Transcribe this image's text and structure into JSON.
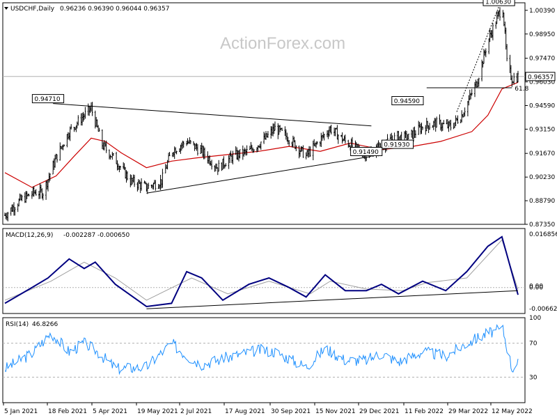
{
  "symbol_header": {
    "symbol": "USDCHF,Daily",
    "ohlc": "0.96236 0.96390 0.96044 0.96357"
  },
  "watermark": "ActionForex.com",
  "colors": {
    "candles": "#000000",
    "sma": "#cc0000",
    "macd": "#000080",
    "signal": "#a0a0a0",
    "rsi": "#1e90ff",
    "trend": "#000000",
    "level_line": "#b0b0b0"
  },
  "chart_data": [
    {
      "type": "candlestick",
      "title": "USDCHF,Daily",
      "x_tick_labels": [
        "5 Jan 2021",
        "18 Feb 2021",
        "5 Apr 2021",
        "19 May 2021",
        "2 Jul 2021",
        "17 Aug 2021",
        "30 Sep 2021",
        "15 Nov 2021",
        "29 Dec 2021",
        "11 Feb 2022",
        "29 Mar 2022",
        "12 May 2022"
      ],
      "y_ticks": [
        "1.00390",
        "0.98950",
        "0.97470",
        "0.96030",
        "0.94590",
        "0.93150",
        "0.91670",
        "0.90230",
        "0.88790",
        "0.87350"
      ],
      "ylim": [
        0.8735,
        1.0085
      ],
      "current_price": "0.96357",
      "annotations": [
        {
          "text": "1.00630",
          "date": "2022-05-12",
          "price": 1.0063
        },
        {
          "text": "0.94710",
          "date": "2021-02-17",
          "price": 0.9471
        },
        {
          "text": "0.94590",
          "date": "2022-02-10",
          "price": 0.9459
        },
        {
          "text": "0.91930",
          "date": "2022-01-31",
          "price": 0.9193
        },
        {
          "text": "0.91490",
          "date": "2021-12-31",
          "price": 0.9149
        },
        {
          "text": "61.8",
          "date": "2022-05-25",
          "price": 0.9567
        }
      ],
      "trendlines": [
        {
          "from": [
            "2021-02-22",
            0.9471
          ],
          "to": [
            "2022-01-05",
            0.9335
          ]
        },
        {
          "from": [
            "2021-05-26",
            0.8925
          ],
          "to": [
            "2022-01-05",
            0.9149
          ]
        },
        {
          "from": [
            "2022-03-31",
            0.942
          ],
          "to": [
            "2022-05-12",
            1.0063
          ]
        }
      ],
      "fib_line": {
        "from": "2022-03-01",
        "to": "2022-05-25",
        "price": 0.9567
      },
      "series_price_keypoints": [
        [
          "2021-01-05",
          0.879
        ],
        [
          "2021-01-20",
          0.888
        ],
        [
          "2021-02-03",
          0.893
        ],
        [
          "2021-02-12",
          0.893
        ],
        [
          "2021-02-25",
          0.914
        ],
        [
          "2021-03-10",
          0.93
        ],
        [
          "2021-03-25",
          0.94
        ],
        [
          "2021-04-01",
          0.944
        ],
        [
          "2021-04-12",
          0.922
        ],
        [
          "2021-04-26",
          0.912
        ],
        [
          "2021-05-10",
          0.9
        ],
        [
          "2021-05-26",
          0.896
        ],
        [
          "2021-06-10",
          0.9
        ],
        [
          "2021-06-20",
          0.918
        ],
        [
          "2021-07-05",
          0.924
        ],
        [
          "2021-07-20",
          0.918
        ],
        [
          "2021-08-05",
          0.908
        ],
        [
          "2021-08-20",
          0.915
        ],
        [
          "2021-09-05",
          0.918
        ],
        [
          "2021-09-20",
          0.925
        ],
        [
          "2021-10-01",
          0.932
        ],
        [
          "2021-10-15",
          0.926
        ],
        [
          "2021-11-01",
          0.915
        ],
        [
          "2021-11-15",
          0.925
        ],
        [
          "2021-11-25",
          0.932
        ],
        [
          "2021-12-10",
          0.924
        ],
        [
          "2021-12-31",
          0.916
        ],
        [
          "2022-01-12",
          0.92
        ],
        [
          "2022-01-31",
          0.927
        ],
        [
          "2022-02-10",
          0.926
        ],
        [
          "2022-02-25",
          0.933
        ],
        [
          "2022-03-10",
          0.935
        ],
        [
          "2022-03-25",
          0.933
        ],
        [
          "2022-04-05",
          0.94
        ],
        [
          "2022-04-20",
          0.96
        ],
        [
          "2022-05-01",
          0.985
        ],
        [
          "2022-05-12",
          1.002
        ],
        [
          "2022-05-16",
          1.005
        ],
        [
          "2022-05-20",
          0.972
        ],
        [
          "2022-05-25",
          0.962
        ],
        [
          "2022-05-31",
          0.9636
        ]
      ],
      "sma": [
        [
          "2021-01-05",
          0.905
        ],
        [
          "2021-02-01",
          0.896
        ],
        [
          "2021-02-25",
          0.903
        ],
        [
          "2021-03-15",
          0.915
        ],
        [
          "2021-04-01",
          0.926
        ],
        [
          "2021-04-15",
          0.924
        ],
        [
          "2021-05-01",
          0.917
        ],
        [
          "2021-05-26",
          0.908
        ],
        [
          "2021-06-20",
          0.912
        ],
        [
          "2021-07-15",
          0.914
        ],
        [
          "2021-08-15",
          0.916
        ],
        [
          "2021-09-15",
          0.918
        ],
        [
          "2021-10-15",
          0.921
        ],
        [
          "2021-11-15",
          0.918
        ],
        [
          "2021-12-15",
          0.923
        ],
        [
          "2022-01-15",
          0.919
        ],
        [
          "2022-02-15",
          0.921
        ],
        [
          "2022-03-15",
          0.924
        ],
        [
          "2022-04-15",
          0.93
        ],
        [
          "2022-05-01",
          0.94
        ],
        [
          "2022-05-15",
          0.956
        ],
        [
          "2022-05-31",
          0.96
        ]
      ]
    },
    {
      "type": "line",
      "title": "MACD(12,26,9)",
      "header_values": "-0.002287 -0.000650",
      "y_ticks": [
        "0.016856",
        "0.00",
        "0.00",
        "-0.006629"
      ],
      "ylim": [
        -0.0082,
        0.0186
      ],
      "series": [
        {
          "name": "MACD",
          "values": [
            [
              "2021-01-05",
              -0.005
            ],
            [
              "2021-02-01",
              0.0
            ],
            [
              "2021-02-17",
              0.003
            ],
            [
              "2021-03-10",
              0.009
            ],
            [
              "2021-03-25",
              0.006
            ],
            [
              "2021-04-05",
              0.008
            ],
            [
              "2021-04-25",
              0.001
            ],
            [
              "2021-05-26",
              -0.006
            ],
            [
              "2021-06-20",
              -0.005
            ],
            [
              "2021-07-05",
              0.005
            ],
            [
              "2021-07-20",
              0.003
            ],
            [
              "2021-08-10",
              -0.004
            ],
            [
              "2021-09-05",
              0.001
            ],
            [
              "2021-09-25",
              0.003
            ],
            [
              "2021-10-15",
              0.0
            ],
            [
              "2021-11-01",
              -0.003
            ],
            [
              "2021-11-20",
              0.004
            ],
            [
              "2021-12-10",
              -0.001
            ],
            [
              "2021-12-31",
              -0.001
            ],
            [
              "2022-01-15",
              0.001
            ],
            [
              "2022-02-01",
              -0.002
            ],
            [
              "2022-02-25",
              0.002
            ],
            [
              "2022-03-20",
              -0.001
            ],
            [
              "2022-04-10",
              0.005
            ],
            [
              "2022-05-01",
              0.013
            ],
            [
              "2022-05-15",
              0.016
            ],
            [
              "2022-05-31",
              -0.0023
            ]
          ]
        },
        {
          "name": "Signal",
          "values": [
            [
              "2021-01-05",
              -0.004
            ],
            [
              "2021-02-20",
              0.002
            ],
            [
              "2021-03-25",
              0.008
            ],
            [
              "2021-04-25",
              0.003
            ],
            [
              "2021-05-26",
              -0.004
            ],
            [
              "2021-07-10",
              0.003
            ],
            [
              "2021-08-15",
              -0.002
            ],
            [
              "2021-09-25",
              0.002
            ],
            [
              "2021-11-05",
              -0.002
            ],
            [
              "2021-11-25",
              0.002
            ],
            [
              "2021-12-31",
              -0.0005
            ],
            [
              "2022-02-05",
              -0.001
            ],
            [
              "2022-03-01",
              0.0015
            ],
            [
              "2022-04-10",
              0.003
            ],
            [
              "2022-05-15",
              0.015
            ],
            [
              "2022-05-31",
              -0.00065
            ]
          ]
        }
      ],
      "trendline": {
        "from": [
          "2021-05-26",
          -0.0067
        ],
        "to": [
          "2022-05-31",
          -0.001
        ]
      }
    },
    {
      "type": "line",
      "title": "RSI(14)",
      "header_values": "46.8266",
      "y_ticks": [
        "100",
        "70",
        "30"
      ],
      "ylim": [
        0,
        100
      ],
      "guides": [
        70,
        30
      ],
      "series": [
        {
          "name": "RSI",
          "values": [
            [
              "2021-01-05",
              40
            ],
            [
              "2021-02-01",
              58
            ],
            [
              "2021-02-20",
              82
            ],
            [
              "2021-03-10",
              60
            ],
            [
              "2021-03-25",
              70
            ],
            [
              "2021-04-05",
              62
            ],
            [
              "2021-04-26",
              40
            ],
            [
              "2021-05-26",
              42
            ],
            [
              "2021-06-20",
              70
            ],
            [
              "2021-07-05",
              55
            ],
            [
              "2021-07-20",
              45
            ],
            [
              "2021-08-20",
              55
            ],
            [
              "2021-09-15",
              62
            ],
            [
              "2021-10-01",
              60
            ],
            [
              "2021-11-01",
              42
            ],
            [
              "2021-11-20",
              64
            ],
            [
              "2021-12-10",
              50
            ],
            [
              "2021-12-31",
              50
            ],
            [
              "2022-01-15",
              58
            ],
            [
              "2022-02-01",
              48
            ],
            [
              "2022-02-25",
              60
            ],
            [
              "2022-03-20",
              55
            ],
            [
              "2022-04-10",
              70
            ],
            [
              "2022-05-01",
              82
            ],
            [
              "2022-05-16",
              86
            ],
            [
              "2022-05-25",
              40
            ],
            [
              "2022-05-31",
              46.8
            ]
          ]
        }
      ]
    }
  ]
}
